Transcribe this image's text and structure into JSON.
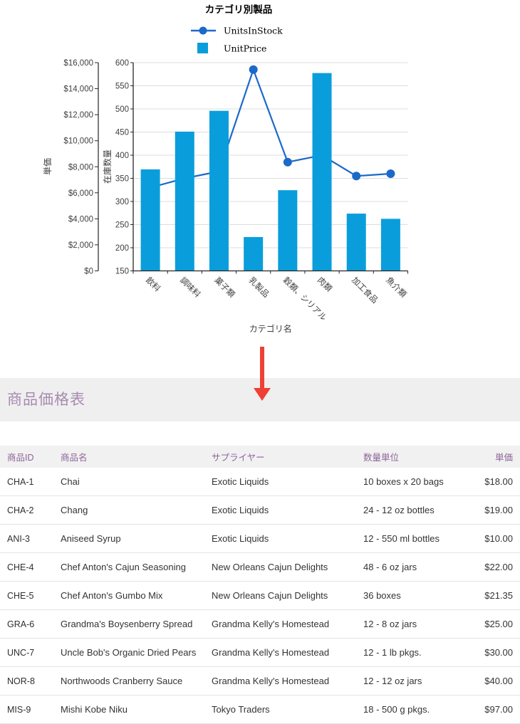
{
  "chart_data": {
    "type": "combo",
    "title": "カテゴリ別製品",
    "categories": [
      "飲料",
      "調味料",
      "菓子類",
      "乳製品",
      "穀類、シリアル",
      "肉類",
      "加工食品",
      "魚介類"
    ],
    "series": [
      {
        "name": "UnitsInStock",
        "type": "line",
        "axis": "stock",
        "color": "#1b69c9",
        "values": [
          330,
          350,
          365,
          585,
          385,
          400,
          355,
          360
        ]
      },
      {
        "name": "UnitPrice",
        "type": "bar",
        "axis": "usd",
        "color": "#099edb",
        "values": [
          7800,
          10700,
          12300,
          2600,
          6200,
          15200,
          4400,
          4000
        ]
      }
    ],
    "legend": [
      {
        "label": "UnitsInStock",
        "marker": "line-dot"
      },
      {
        "label": "UnitPrice",
        "marker": "square"
      }
    ],
    "legend_position": "top",
    "grid": true,
    "xlabel": "カテゴリ名",
    "y_usd": {
      "label": "単価",
      "min": 0,
      "max": 16000,
      "step": 2000,
      "tick_labels": [
        "$0",
        "$2,000",
        "$4,000",
        "$6,000",
        "$8,000",
        "$10,000",
        "$12,000",
        "$14,000",
        "$16,000"
      ]
    },
    "y_stock": {
      "label": "在庫数量",
      "min": 150,
      "max": 600,
      "step": 50,
      "tick_labels": [
        "150",
        "200",
        "250",
        "300",
        "350",
        "400",
        "450",
        "500",
        "550",
        "600"
      ]
    }
  },
  "arrow": {
    "direction": "down",
    "color": "#ee4035"
  },
  "section": {
    "title": "商品価格表"
  },
  "table": {
    "columns": [
      {
        "label": "商品ID",
        "align": "left"
      },
      {
        "label": "商品名",
        "align": "left"
      },
      {
        "label": "サプライヤー",
        "align": "left"
      },
      {
        "label": "数量単位",
        "align": "left"
      },
      {
        "label": "単価",
        "align": "right"
      }
    ],
    "rows": [
      [
        "CHA-1",
        "Chai",
        "Exotic Liquids",
        "10 boxes x 20 bags",
        "$18.00"
      ],
      [
        "CHA-2",
        "Chang",
        "Exotic Liquids",
        "24 - 12 oz bottles",
        "$19.00"
      ],
      [
        "ANI-3",
        "Aniseed Syrup",
        "Exotic Liquids",
        "12 - 550 ml bottles",
        "$10.00"
      ],
      [
        "CHE-4",
        "Chef Anton's Cajun Seasoning",
        "New Orleans Cajun Delights",
        "48 - 6 oz jars",
        "$22.00"
      ],
      [
        "CHE-5",
        "Chef Anton's Gumbo Mix",
        "New Orleans Cajun Delights",
        "36 boxes",
        "$21.35"
      ],
      [
        "GRA-6",
        "Grandma's Boysenberry Spread",
        "Grandma Kelly's Homestead",
        "12 - 8 oz jars",
        "$25.00"
      ],
      [
        "UNC-7",
        "Uncle Bob's Organic Dried Pears",
        "Grandma Kelly's Homestead",
        "12 - 1 lb pkgs.",
        "$30.00"
      ],
      [
        "NOR-8",
        "Northwoods Cranberry Sauce",
        "Grandma Kelly's Homestead",
        "12 - 12 oz jars",
        "$40.00"
      ],
      [
        "MIS-9",
        "Mishi Kobe Niku",
        "Tokyo Traders",
        "18 - 500 g pkgs.",
        "$97.00"
      ]
    ]
  }
}
